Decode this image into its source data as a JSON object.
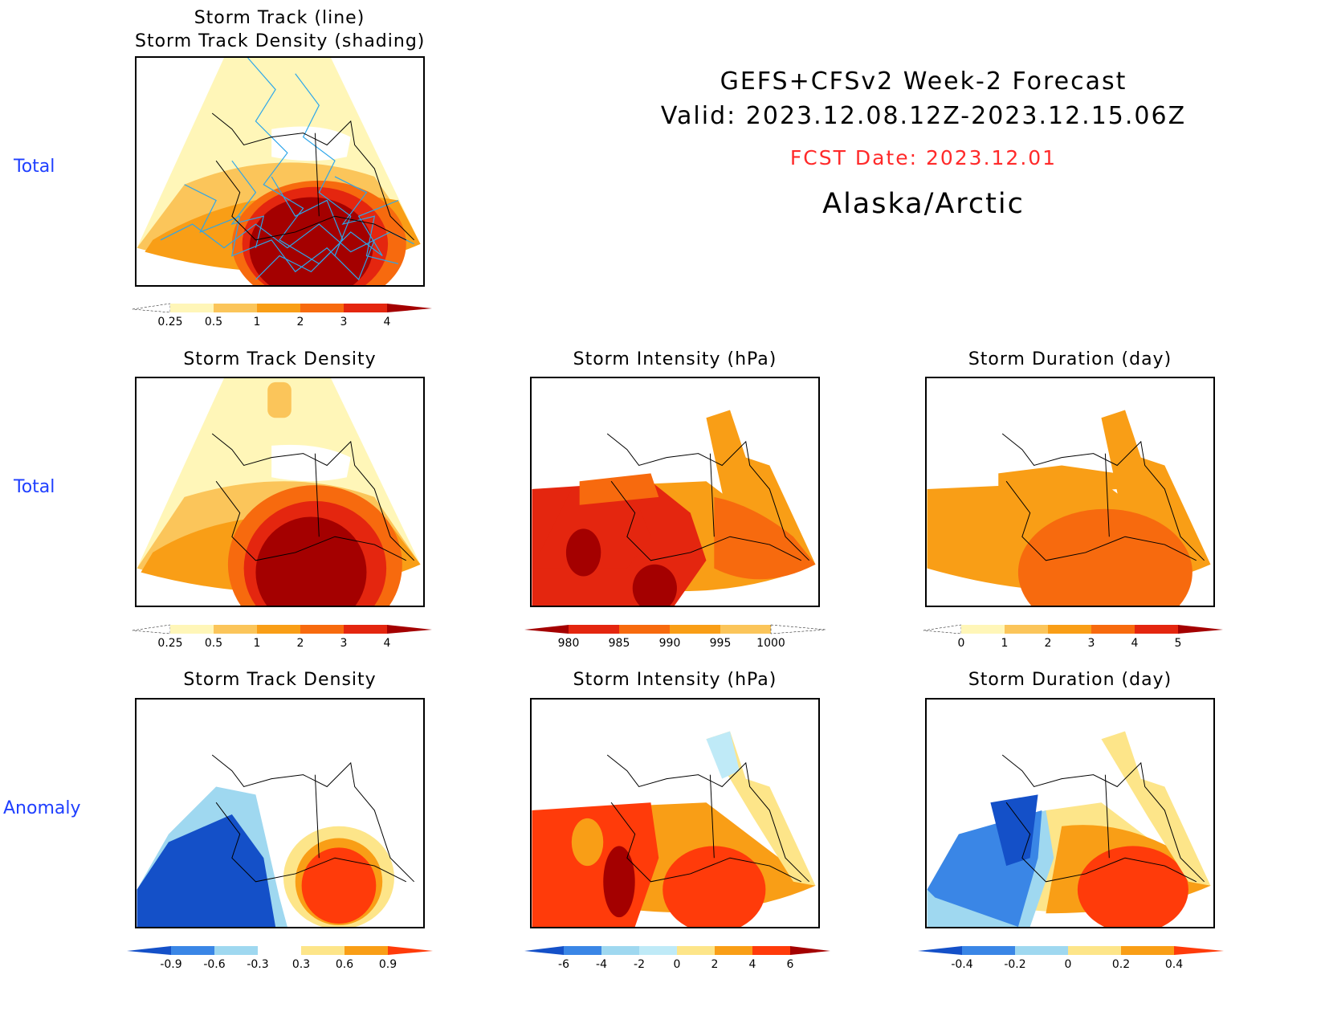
{
  "header": {
    "line1": "GEFS+CFSv2 Week-2 Forecast",
    "line2": "Valid: 2023.12.08.12Z-2023.12.15.06Z",
    "fcst_date": "FCST Date: 2023.12.01",
    "region": "Alaska/Arctic",
    "fcst_color": "#ff2a2a"
  },
  "row_labels": [
    "Total",
    "Total",
    "Anomaly"
  ],
  "panels": {
    "top": {
      "title1": "Storm Track (line)",
      "title2": "Storm Track Density (shading)"
    },
    "density_total": {
      "title": "Storm Track Density"
    },
    "intensity_total": {
      "title": "Storm Intensity (hPa)"
    },
    "duration_total": {
      "title": "Storm Duration (day)"
    },
    "density_anom": {
      "title": "Storm Track Density"
    },
    "intensity_anom": {
      "title": "Storm Intensity (hPa)"
    },
    "duration_anom": {
      "title": "Storm Duration (day)"
    }
  },
  "chart_data": [
    {
      "type": "heatmap",
      "title": "Storm Track Density",
      "row": "Total",
      "colorbar": {
        "ticks": [
          "0.25",
          "0.5",
          "1",
          "2",
          "3",
          "4"
        ],
        "colors": [
          "#ffffff",
          "#fff6b8",
          "#fbc55a",
          "#f99e16",
          "#f76a0e",
          "#e4260f",
          "#a40000"
        ]
      },
      "overlay": "Storm Track (line)"
    },
    {
      "type": "heatmap",
      "title": "Storm Intensity (hPa)",
      "row": "Total",
      "colorbar": {
        "ticks": [
          "980",
          "985",
          "990",
          "995",
          "1000"
        ],
        "colors": [
          "#a40000",
          "#e4260f",
          "#f76a0e",
          "#f99e16",
          "#fbc55a",
          "#fff6b8",
          "#ffffff"
        ]
      }
    },
    {
      "type": "heatmap",
      "title": "Storm Duration (day)",
      "row": "Total",
      "colorbar": {
        "ticks": [
          "0",
          "1",
          "2",
          "3",
          "4",
          "5"
        ],
        "colors": [
          "#ffffff",
          "#fff6b8",
          "#fbc55a",
          "#f99e16",
          "#f76a0e",
          "#e4260f",
          "#a40000"
        ]
      }
    },
    {
      "type": "heatmap",
      "title": "Storm Track Density",
      "row": "Anomaly",
      "colorbar": {
        "ticks": [
          "-0.9",
          "-0.6",
          "-0.3",
          "0.3",
          "0.6",
          "0.9"
        ],
        "colors": [
          "#1450c8",
          "#3a86e6",
          "#9fd8f0",
          "#ffffff",
          "#fde589",
          "#f99e16",
          "#ff3b0a"
        ]
      }
    },
    {
      "type": "heatmap",
      "title": "Storm Intensity (hPa)",
      "row": "Anomaly",
      "colorbar": {
        "ticks": [
          "-6",
          "-4",
          "-2",
          "0",
          "2",
          "4",
          "6"
        ],
        "colors": [
          "#1450c8",
          "#3a86e6",
          "#9fd8f0",
          "#bfeaf7",
          "#fde589",
          "#f99e16",
          "#ff3b0a",
          "#a40000"
        ]
      }
    },
    {
      "type": "heatmap",
      "title": "Storm Duration (day)",
      "row": "Anomaly",
      "colorbar": {
        "ticks": [
          "-0.4",
          "-0.2",
          "0",
          "0.2",
          "0.4"
        ],
        "colors": [
          "#1450c8",
          "#3a86e6",
          "#9fd8f0",
          "#fde589",
          "#f99e16",
          "#ff3b0a"
        ]
      }
    }
  ]
}
